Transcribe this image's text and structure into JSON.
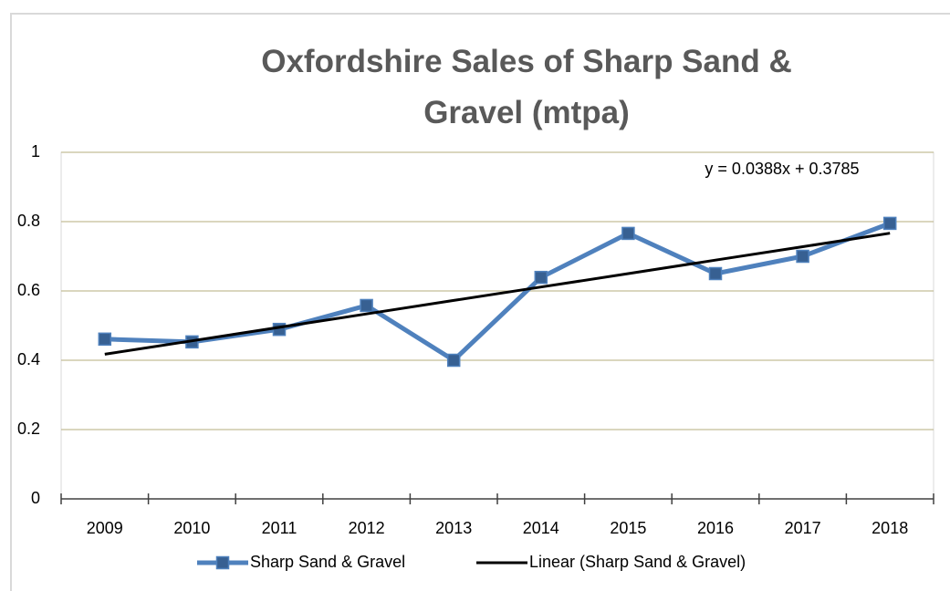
{
  "chart_data": {
    "type": "line",
    "title": "Oxfordshire Sales of Sharp Sand & Gravel (mtpa)",
    "categories": [
      "2009",
      "2010",
      "2011",
      "2012",
      "2013",
      "2014",
      "2015",
      "2016",
      "2017",
      "2018"
    ],
    "series": [
      {
        "name": "Sharp Sand & Gravel",
        "color": "#4f81bd",
        "values": [
          0.461,
          0.453,
          0.489,
          0.558,
          0.4,
          0.639,
          0.766,
          0.65,
          0.7,
          0.795
        ]
      },
      {
        "name": "Linear (Sharp Sand & Gravel)",
        "color": "#000000",
        "values": [
          0.4173,
          0.4561,
          0.4949,
          0.5337,
          0.5725,
          0.6113,
          0.6501,
          0.6889,
          0.7277,
          0.7665
        ]
      }
    ],
    "annotation": "y = 0.0388x + 0.3785",
    "ylim": [
      0,
      1
    ],
    "yticks": [
      0,
      0.2,
      0.4,
      0.6,
      0.8,
      1
    ],
    "grid": true,
    "legend": "bottom"
  }
}
